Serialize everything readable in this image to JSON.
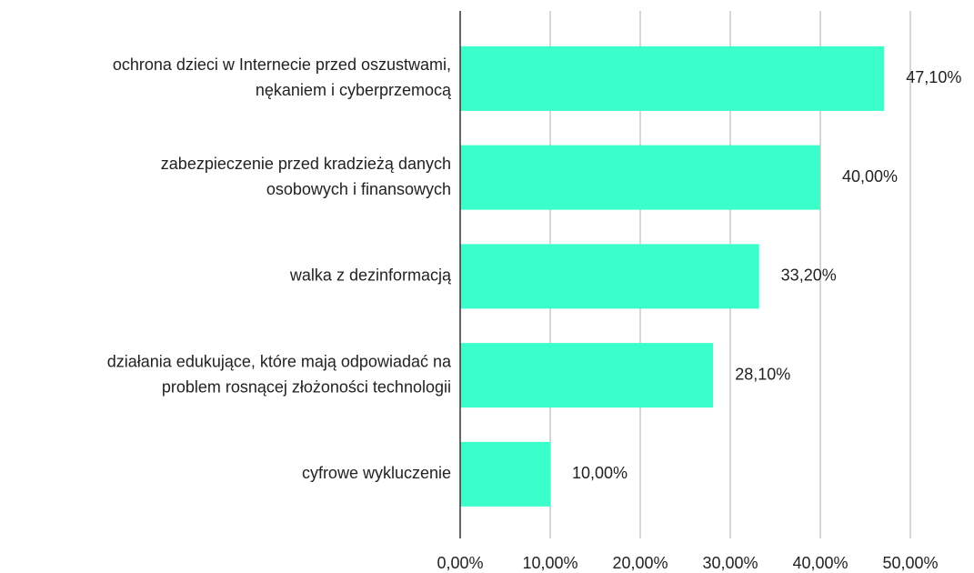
{
  "chart_data": {
    "type": "barh",
    "categories": [
      [
        "ochrona dzieci w Internecie przed oszustwami,",
        "nękaniem i cyberprzemocą"
      ],
      [
        "zabezpieczenie przed kradzieżą danych",
        "osobowych i finansowych"
      ],
      [
        "walka z dezinformacją"
      ],
      [
        "działania edukujące, które mają odpowiadać na",
        "problem rosnącej złożoności technologii"
      ],
      [
        "cyfrowe wykluczenie"
      ]
    ],
    "values": [
      47.1,
      40.0,
      33.2,
      28.1,
      10.0
    ],
    "value_labels": [
      "47,10%",
      "40,00%",
      "33,20%",
      "28,10%",
      "10,00%"
    ],
    "color": "#3bffcb",
    "xlim": [
      0,
      50
    ],
    "xticks": [
      {
        "value": 0,
        "label": "0,00%"
      },
      {
        "value": 10,
        "label": "10,00%"
      },
      {
        "value": 20,
        "label": "20,00%"
      },
      {
        "value": 30,
        "label": "30,00%"
      },
      {
        "value": 40,
        "label": "40,00%"
      },
      {
        "value": 50,
        "label": "50,00%"
      }
    ],
    "grid": true
  }
}
